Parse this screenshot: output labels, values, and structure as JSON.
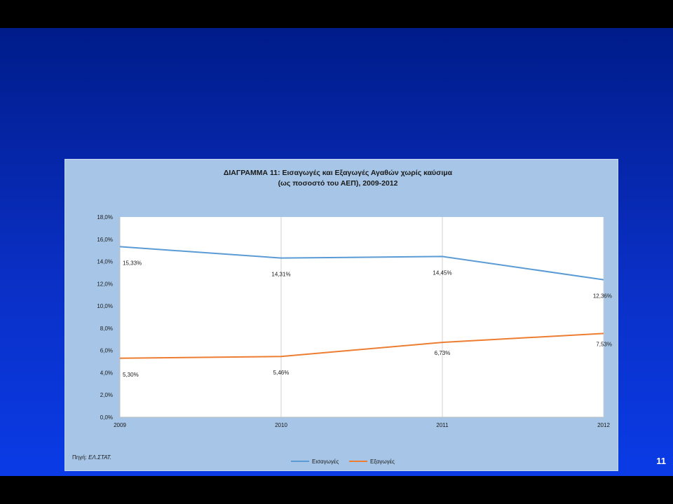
{
  "slide": {
    "number": "11"
  },
  "chart_data": {
    "type": "line",
    "title": "ΔΙΑΓΡΑΜΜΑ 11: Εισαγωγές και Εξαγωγές Αγαθών χωρίς καύσιμα",
    "subtitle": "(ως ποσοστό του ΑΕΠ), 2009-2012",
    "categories": [
      "2009",
      "2010",
      "2011",
      "2012"
    ],
    "series": [
      {
        "name": "Εισαγωγές",
        "color": "#5b9bd5",
        "values": [
          15.33,
          14.31,
          14.45,
          12.36
        ],
        "labels": [
          "15,33%",
          "14,31%",
          "14,45%",
          "12,36%"
        ]
      },
      {
        "name": "Εξαγωγές",
        "color": "#ed7d31",
        "values": [
          5.3,
          5.46,
          6.73,
          7.53
        ],
        "labels": [
          "5,30%",
          "5,46%",
          "6,73%",
          "7,53%"
        ]
      }
    ],
    "ylim": [
      0,
      18
    ],
    "yticks": [
      "0,0%",
      "2,0%",
      "4,0%",
      "6,0%",
      "8,0%",
      "10,0%",
      "12,0%",
      "14,0%",
      "16,0%",
      "18,0%"
    ],
    "grid": "vertical",
    "legend": "bottom",
    "source_label": "Πηγή: ",
    "source_value": "ΕΛ.ΣΤΑΤ."
  }
}
